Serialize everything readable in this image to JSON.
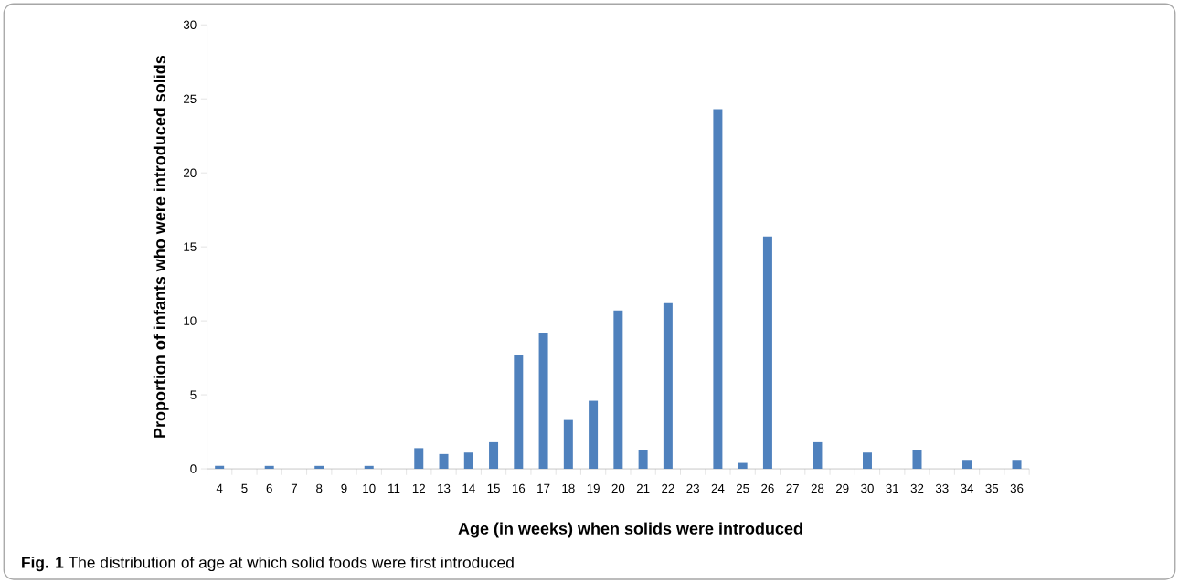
{
  "chart_data": {
    "type": "bar",
    "xlabel": "Age (in weeks) when solids were introduced",
    "ylabel": "Proportion of infants who were introduced solids",
    "annotations": [
      "**Fig. 1** The distribution of age at which solid foods were first introduced"
    ],
    "categories": [
      "4",
      "5",
      "6",
      "7",
      "8",
      "9",
      "10",
      "11",
      "12",
      "13",
      "14",
      "15",
      "16",
      "17",
      "18",
      "19",
      "20",
      "21",
      "22",
      "23",
      "24",
      "25",
      "26",
      "27",
      "28",
      "29",
      "30",
      "31",
      "32",
      "33",
      "34",
      "35",
      "36"
    ],
    "values": [
      0.2,
      0,
      0.2,
      0,
      0.2,
      0,
      0.2,
      0,
      1.4,
      1.0,
      1.1,
      1.8,
      7.7,
      9.2,
      3.3,
      4.6,
      10.7,
      1.3,
      11.2,
      0,
      24.3,
      0.4,
      15.7,
      0,
      1.8,
      0,
      1.1,
      0,
      1.3,
      0,
      0.6,
      0,
      0.6
    ],
    "color": "#4f81bd",
    "ylim": [
      0,
      30
    ],
    "yticks": [
      0,
      5,
      10,
      15,
      20,
      25,
      30
    ],
    "grid": false
  }
}
